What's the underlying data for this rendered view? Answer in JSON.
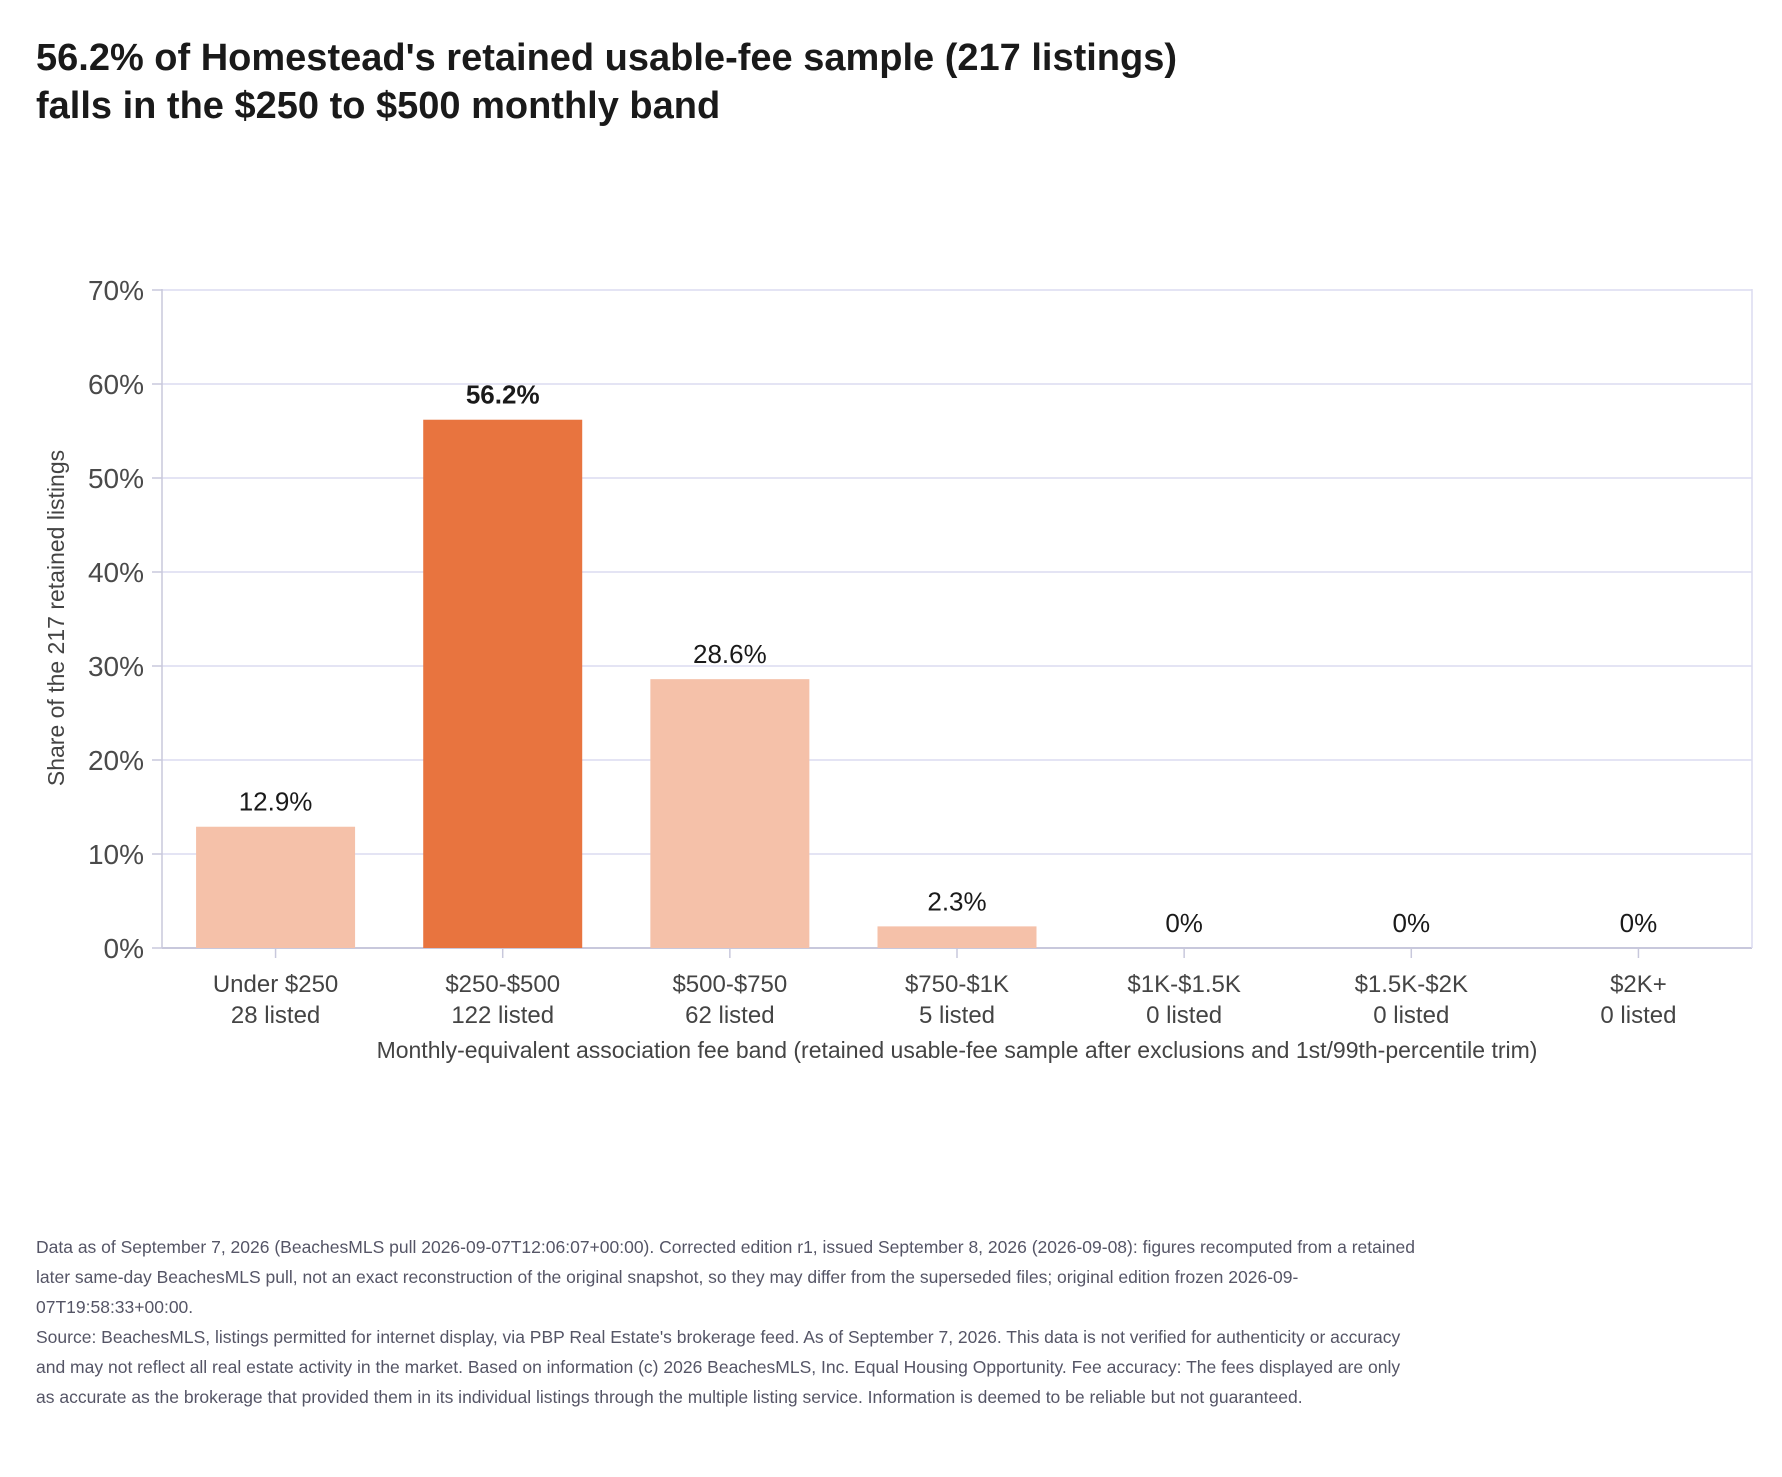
{
  "title_lines": [
    "56.2% of Homestead's retained usable-fee sample (217 listings)",
    "falls in the $250 to $500 monthly band"
  ],
  "chart_data": {
    "type": "bar",
    "categories": [
      "Under $250",
      "$250-$500",
      "$500-$750",
      "$750-$1K",
      "$1K-$1.5K",
      "$1.5K-$2K",
      "$2K+"
    ],
    "category_counts": [
      "28 listed",
      "122 listed",
      "62 listed",
      "5 listed",
      "0 listed",
      "0 listed",
      "0 listed"
    ],
    "values": [
      12.9,
      56.2,
      28.6,
      2.3,
      0,
      0,
      0
    ],
    "value_labels": [
      "12.9%",
      "56.2%",
      "28.6%",
      "2.3%",
      "0%",
      "0%",
      "0%"
    ],
    "highlight_index": 1,
    "ylim": [
      0,
      70
    ],
    "yticks": [
      0,
      10,
      20,
      30,
      40,
      50,
      60,
      70
    ],
    "ytick_labels": [
      "0%",
      "10%",
      "20%",
      "30%",
      "40%",
      "50%",
      "60%",
      "70%"
    ],
    "ylabel": "Share of the 217 retained listings",
    "xlabel": "Monthly-equivalent association fee band (retained usable-fee sample after exclusions and 1st/99th-percentile trim)",
    "grid": true,
    "legend": "none",
    "colors": {
      "highlight": "#e8743f",
      "bar": "#f5c1a9",
      "grid": "#dcdcf0",
      "axis": "#c8c8dc"
    }
  },
  "footnotes": {
    "edition_note": "Data as of September 7, 2026 (BeachesMLS pull 2026-09-07T12:06:07+00:00). Corrected edition r1, issued September 8, 2026 (2026-09-08): figures recomputed from a retained later same-day BeachesMLS pull, not an exact reconstruction of the original snapshot, so they may differ from the superseded files; original edition frozen 2026-09-07T19:58:33+00:00.",
    "source_note": "Source: BeachesMLS, listings permitted for internet display, via PBP Real Estate's brokerage feed. As of September 7, 2026. This data is not verified for authenticity or accuracy and may not reflect all real estate activity in the market. Based on information (c) 2026 BeachesMLS, Inc. Equal Housing Opportunity. Fee accuracy: The fees displayed are only as accurate as the brokerage that provided them in its individual listings through the multiple listing service. Information is deemed to be reliable but not guaranteed."
  }
}
